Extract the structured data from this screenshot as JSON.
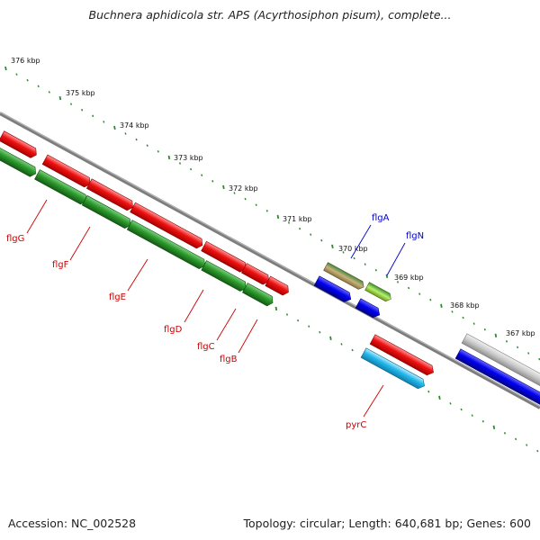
{
  "title": "Buchnera aphidicola str. APS (Acyrthosiphon pisum), complete...",
  "footer": {
    "accession": "Accession: NC_002528",
    "summary": "Topology: circular; Length: 640,681 bp; Genes: 600"
  },
  "ruler": {
    "labels": [
      "376 kbp",
      "375 kbp",
      "374 kbp",
      "373 kbp",
      "372 kbp",
      "371 kbp",
      "370 kbp",
      "369 kbp",
      "368 kbp",
      "367 kbp"
    ]
  },
  "colors": {
    "backbone": "#808080",
    "tick": "#2f8a2f",
    "red": "#e00000",
    "green": "#2a8f2a",
    "tan": "#a8945a",
    "lime": "#9acd32",
    "blue": "#0000e0",
    "cyan": "#1fb4e6",
    "gray": "#bdbdbd",
    "label_red": "#cc0000",
    "label_blue": "#0000cc"
  },
  "genes": [
    {
      "name": "flgG",
      "color": "label_red"
    },
    {
      "name": "flgF",
      "color": "label_red"
    },
    {
      "name": "flgE",
      "color": "label_red"
    },
    {
      "name": "flgD",
      "color": "label_red"
    },
    {
      "name": "flgC",
      "color": "label_red"
    },
    {
      "name": "flgB",
      "color": "label_red"
    },
    {
      "name": "flgA",
      "color": "label_blue"
    },
    {
      "name": "flgN",
      "color": "label_blue"
    },
    {
      "name": "pyrC",
      "color": "label_red"
    }
  ]
}
